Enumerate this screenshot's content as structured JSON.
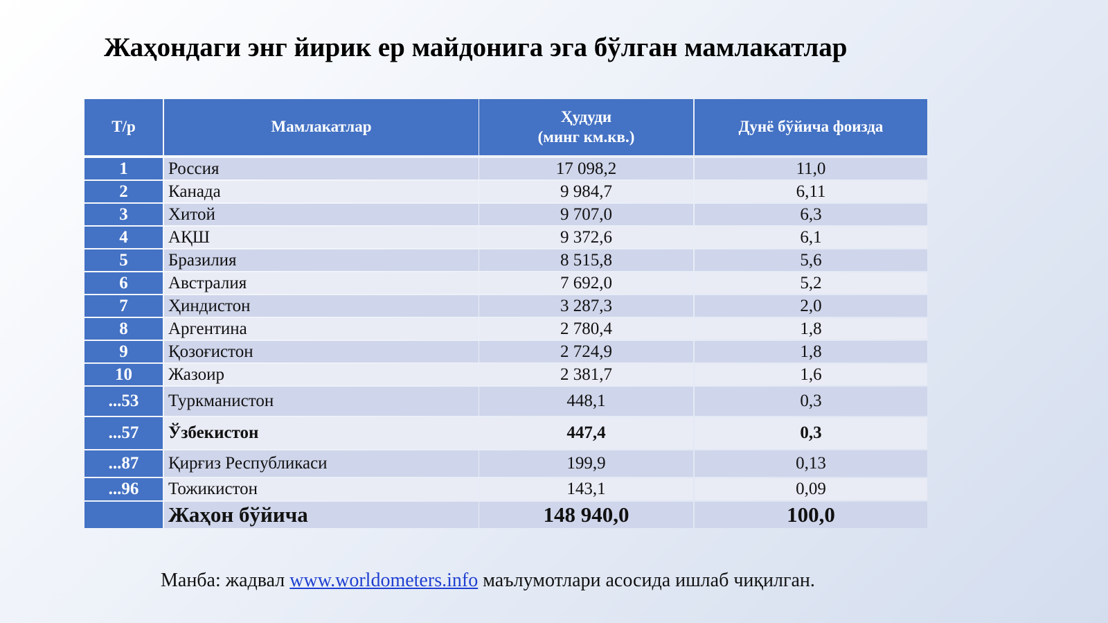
{
  "header": {
    "title": "Жаҳондаги энг йирик ер майдонига эга бўлган мамлакатлар"
  },
  "table": {
    "columns": [
      "Т/р",
      "Мамлакатлар",
      "Ҳудуди\n(минг км.кв.)",
      "Дунё бўйича фоизда"
    ],
    "rows": [
      [
        "1",
        "Россия",
        "17 098,2",
        "11,0"
      ],
      [
        "2",
        "Канада",
        "9 984,7",
        "6,11"
      ],
      [
        "3",
        "Хитой",
        "9 707,0",
        "6,3"
      ],
      [
        "4",
        "АҚШ",
        "9 372,6",
        "6,1"
      ],
      [
        "5",
        "Бразилия",
        "8 515,8",
        "5,6"
      ],
      [
        "6",
        "Австралия",
        "7 692,0",
        "5,2"
      ],
      [
        "7",
        "Ҳиндистон",
        "3 287,3",
        "2,0"
      ],
      [
        "8",
        "Аргентина",
        "2 780,4",
        "1,8"
      ],
      [
        "9",
        "Қозоғистон",
        "2 724,9",
        "1,8"
      ],
      [
        "10",
        "Жазоир",
        "2 381,7",
        "1,6"
      ],
      [
        "...53",
        "Туркманистон",
        "448,1",
        "0,3"
      ],
      [
        "...57",
        "Ўзбекистон",
        "447,4",
        "0,3"
      ],
      [
        "...87",
        "Қирғиз Республикаси",
        "199,9",
        "0,13"
      ],
      [
        "...96",
        "Тожикистон",
        "143,1",
        "0,09"
      ]
    ],
    "total": [
      "Жаҳон бўйича",
      "148 940,0",
      "100,0"
    ]
  },
  "source": {
    "prefix": "Манба: жадвал",
    "link": "www.worldometers.info",
    "suffix": "маълумотлари асосида ишлаб чиқилган."
  }
}
